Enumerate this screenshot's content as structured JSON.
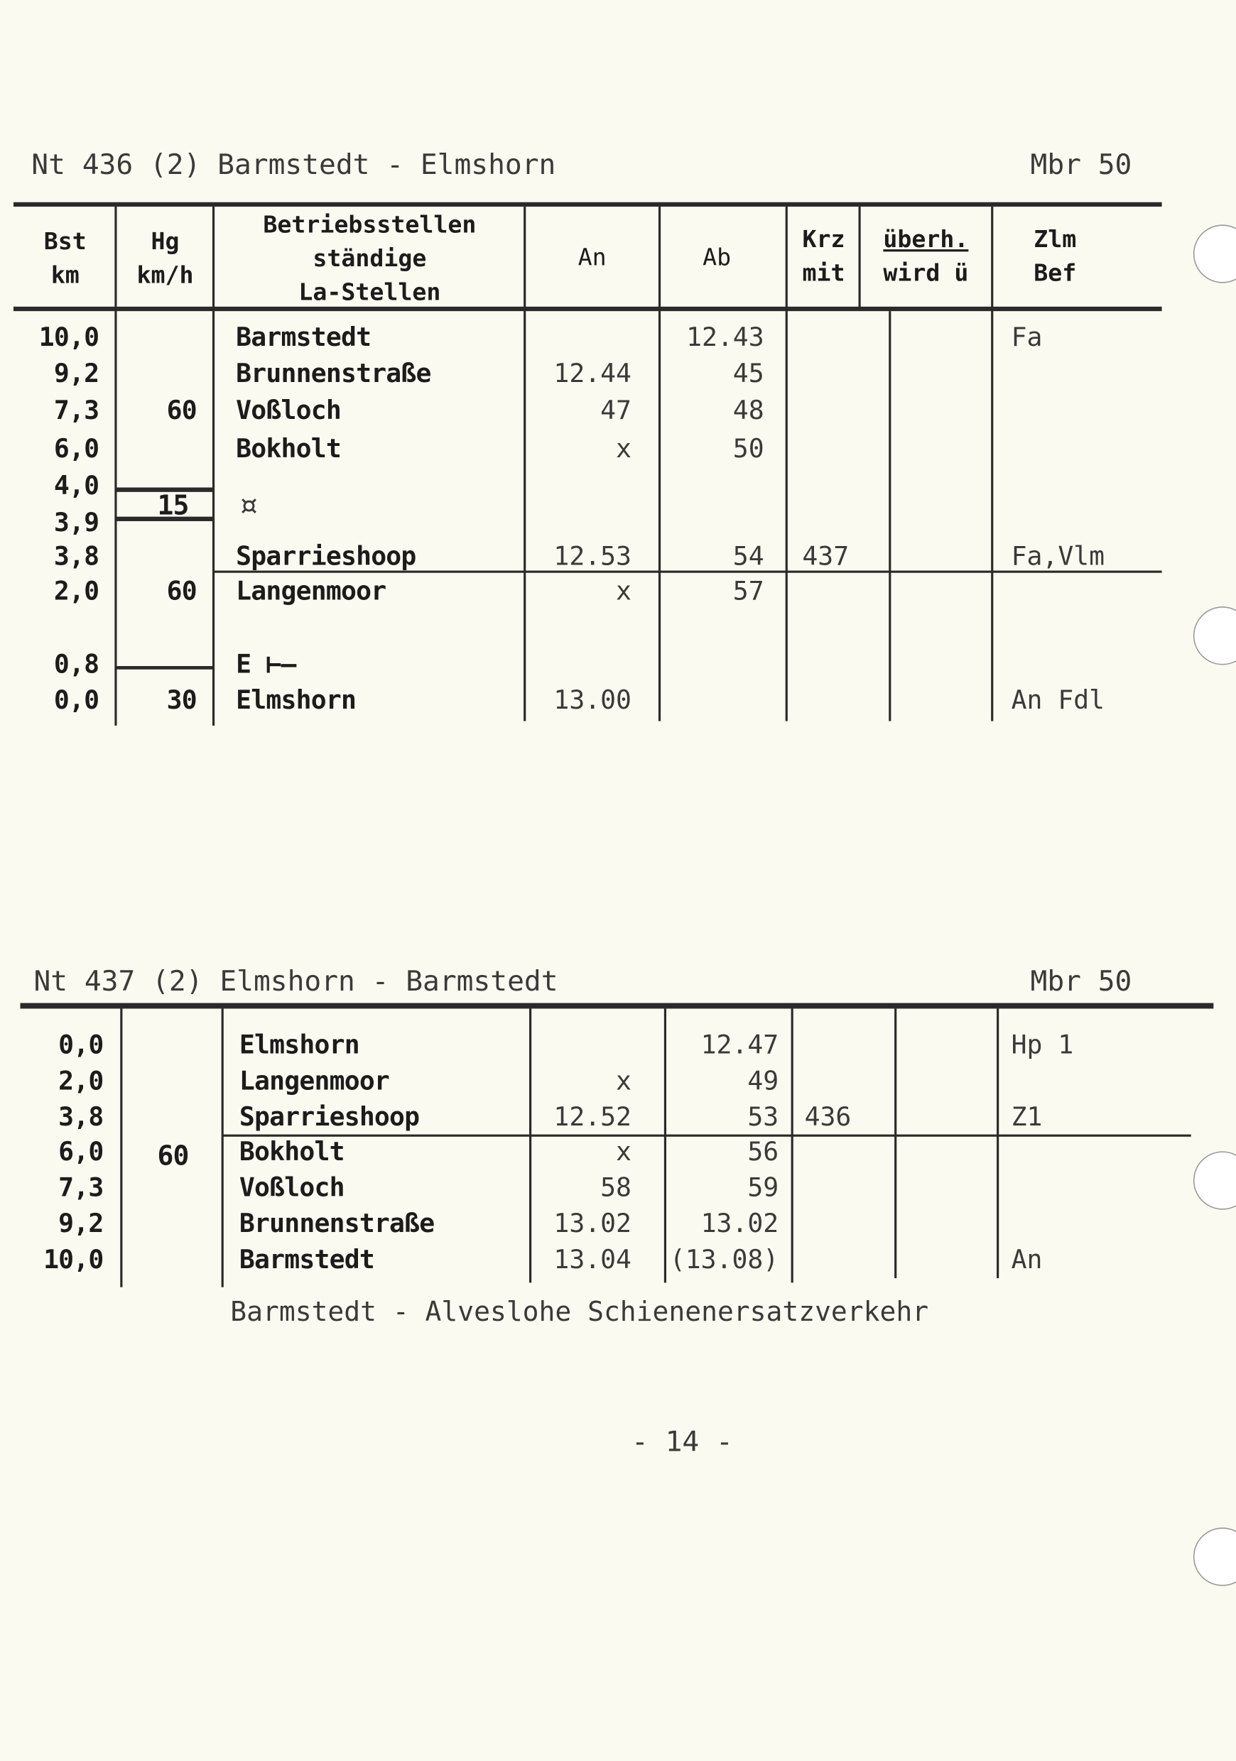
{
  "table1": {
    "title": "Nt 436 (2) Barmstedt - Elmshorn",
    "brake": "Mbr 50",
    "headers": {
      "km": [
        "Bst",
        "km"
      ],
      "speed": [
        "Hg",
        "km/h"
      ],
      "stations": [
        "Betriebsstellen",
        "ständige",
        "La-Stellen"
      ],
      "arr": "An",
      "dep": "Ab",
      "cross": [
        "Krz",
        "mit"
      ],
      "overtake": [
        "überh.",
        "wird ü"
      ],
      "notes": [
        "Zlm",
        "Bef"
      ]
    },
    "rows": [
      {
        "km": "10,0",
        "speed": "",
        "station": "Barmstedt",
        "arr": "",
        "dep": "12.43",
        "cross": "",
        "notes": "Fa"
      },
      {
        "km": "9,2",
        "speed": "",
        "station": "Brunnenstraße",
        "arr": "12.44",
        "dep": "45",
        "cross": "",
        "notes": ""
      },
      {
        "km": "7,3",
        "speed": "60",
        "station": "Voßloch",
        "arr": "47",
        "dep": "48",
        "cross": "",
        "notes": ""
      },
      {
        "km": "6,0",
        "speed": "",
        "station": "Bokholt",
        "arr": "x",
        "dep": "50",
        "cross": "",
        "notes": ""
      },
      {
        "km": "4,0",
        "speed": "",
        "station": "",
        "arr": "",
        "dep": "",
        "cross": "",
        "notes": ""
      },
      {
        "km": "3,9",
        "speed": "",
        "station": "",
        "arr": "",
        "dep": "",
        "cross": "",
        "notes": ""
      },
      {
        "km": "3,8",
        "speed": "",
        "station": "Sparrieshoop",
        "arr": "12.53",
        "dep": "54",
        "cross": "437",
        "notes": "Fa,Vlm"
      },
      {
        "km": "2,0",
        "speed": "60",
        "station": "Langenmoor",
        "arr": "x",
        "dep": "57",
        "cross": "",
        "notes": ""
      },
      {
        "km": "0,8",
        "speed": "",
        "station": "E ⊢—",
        "arr": "",
        "dep": "",
        "cross": "",
        "notes": ""
      },
      {
        "km": "0,0",
        "speed": "30",
        "station": "Elmshorn",
        "arr": "13.00",
        "dep": "",
        "cross": "",
        "notes": "An Fdl"
      }
    ],
    "slow_zone_speed": "15",
    "slow_zone_symbol": "¤"
  },
  "table2": {
    "title": "Nt 437 (2) Elmshorn - Barmstedt",
    "brake": "Mbr 50",
    "speed": "60",
    "rows": [
      {
        "km": "0,0",
        "station": "Elmshorn",
        "arr": "",
        "dep": "12.47",
        "cross": "",
        "notes": "Hp 1"
      },
      {
        "km": "2,0",
        "station": "Langenmoor",
        "arr": "x",
        "dep": "49",
        "cross": "",
        "notes": ""
      },
      {
        "km": "3,8",
        "station": "Sparrieshoop",
        "arr": "12.52",
        "dep": "53",
        "cross": "436",
        "notes": "Z1"
      },
      {
        "km": "6,0",
        "station": "Bokholt",
        "arr": "x",
        "dep": "56",
        "cross": "",
        "notes": ""
      },
      {
        "km": "7,3",
        "station": "Voßloch",
        "arr": "58",
        "dep": "59",
        "cross": "",
        "notes": ""
      },
      {
        "km": "9,2",
        "station": "Brunnenstraße",
        "arr": "13.02",
        "dep": "13.02",
        "cross": "",
        "notes": ""
      },
      {
        "km": "10,0",
        "station": "Barmstedt",
        "arr": "13.04",
        "dep": "(13.08)",
        "cross": "",
        "notes": "An"
      }
    ],
    "footnote": "Barmstedt - Alveslohe Schienenersatzverkehr"
  },
  "page_number": "- 14 -"
}
